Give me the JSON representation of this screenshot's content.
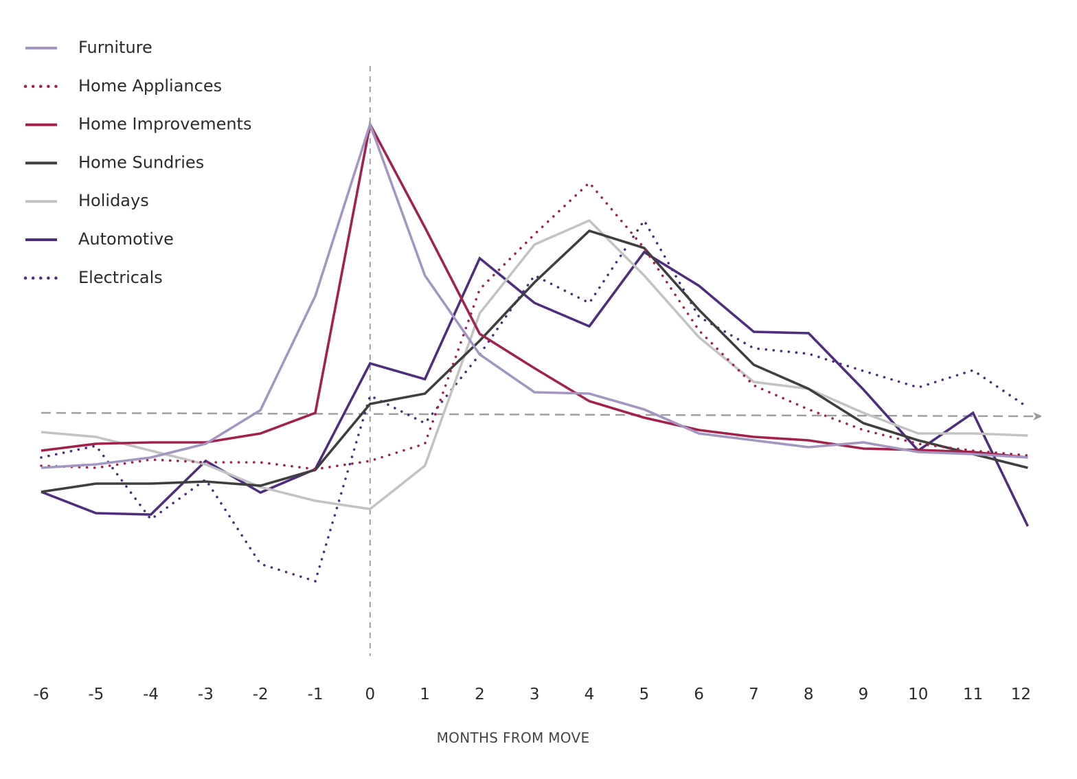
{
  "chart_data": {
    "type": "line",
    "title": "",
    "xlabel": "MONTHS FROM MOVE",
    "ylabel": "",
    "x": [
      -6,
      -5,
      -4,
      -3,
      -2,
      -1,
      0,
      1,
      2,
      3,
      4,
      5,
      6,
      7,
      8,
      9,
      10,
      11,
      12
    ],
    "x_tick_labels": [
      "-6",
      "-5",
      "-4",
      "-3",
      "-2",
      "-1",
      "0",
      "1",
      "2",
      "3",
      "4",
      "5",
      "6",
      "7",
      "8",
      "9",
      "10",
      "11",
      "12"
    ],
    "ylim": [
      -0.4,
      0.5
    ],
    "baseline": 0,
    "grid": false,
    "legend_position": "top-left",
    "series": [
      {
        "name": "Furniture",
        "color": "#a396c2",
        "style": "solid",
        "values": [
          -0.08,
          -0.075,
          -0.065,
          -0.045,
          0.004,
          0.17,
          0.42,
          0.2,
          0.085,
          0.03,
          0.028,
          0.005,
          -0.03,
          -0.04,
          -0.05,
          -0.043,
          -0.057,
          -0.06,
          -0.065
        ]
      },
      {
        "name": "Home Appliances",
        "color": "#a3224c",
        "style": "dotted",
        "values": [
          -0.077,
          -0.08,
          -0.068,
          -0.072,
          -0.072,
          -0.082,
          -0.07,
          -0.045,
          0.18,
          0.26,
          0.335,
          0.24,
          0.12,
          0.04,
          0.005,
          -0.025,
          -0.045,
          -0.055,
          -0.062
        ]
      },
      {
        "name": "Home Improvements",
        "color": "#a3224c",
        "style": "solid",
        "values": [
          -0.055,
          -0.045,
          -0.043,
          -0.043,
          -0.03,
          0.0,
          0.42,
          0.27,
          0.115,
          0.065,
          0.017,
          -0.007,
          -0.025,
          -0.035,
          -0.04,
          -0.052,
          -0.054,
          -0.057,
          -0.065
        ]
      },
      {
        "name": "Home Sundries",
        "color": "#3f3f3f",
        "style": "solid",
        "values": [
          -0.115,
          -0.103,
          -0.103,
          -0.1,
          -0.106,
          -0.083,
          0.013,
          0.028,
          0.105,
          0.19,
          0.265,
          0.24,
          0.15,
          0.07,
          0.035,
          -0.015,
          -0.04,
          -0.06,
          -0.08
        ]
      },
      {
        "name": "Holidays",
        "color": "#c3c3c3",
        "style": "solid",
        "values": [
          -0.028,
          -0.035,
          -0.055,
          -0.075,
          -0.108,
          -0.128,
          -0.14,
          -0.077,
          0.145,
          0.245,
          0.28,
          0.2,
          0.11,
          0.045,
          0.035,
          0.0,
          -0.03,
          -0.03,
          -0.033
        ]
      },
      {
        "name": "Automotive",
        "color": "#4f2d7f",
        "style": "solid",
        "values": [
          -0.115,
          -0.146,
          -0.148,
          -0.07,
          -0.116,
          -0.082,
          0.072,
          0.049,
          0.225,
          0.16,
          0.126,
          0.234,
          0.185,
          0.118,
          0.116,
          0.034,
          -0.055,
          0.0,
          -0.165
        ]
      },
      {
        "name": "Electricals",
        "color": "#4f2d7f",
        "style": "dotted",
        "values": [
          -0.065,
          -0.048,
          -0.155,
          -0.097,
          -0.22,
          -0.245,
          0.025,
          -0.015,
          0.085,
          0.2,
          0.16,
          0.28,
          0.14,
          0.094,
          0.086,
          0.061,
          0.037,
          0.062,
          0.008
        ]
      }
    ]
  }
}
